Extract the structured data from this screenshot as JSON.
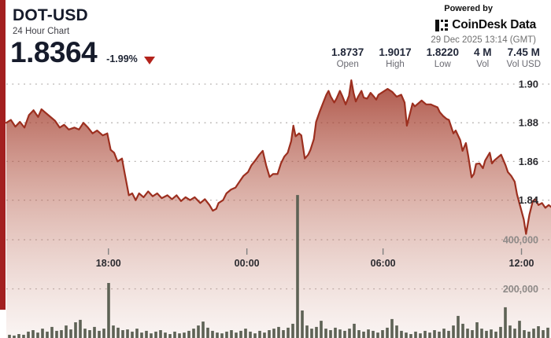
{
  "header": {
    "symbol": "DOT-USD",
    "subtitle": "24 Hour Chart",
    "price": "1.8364",
    "change": "-1.99%",
    "change_direction": "down",
    "accent_color": "#a32020"
  },
  "attribution": {
    "powered_by": "Powered by",
    "brand": "CoinDesk Data",
    "timestamp": "29 Dec 2025 13:14 (GMT)"
  },
  "stats": [
    {
      "value": "1.8737",
      "label": "Open"
    },
    {
      "value": "1.9017",
      "label": "High"
    },
    {
      "value": "1.8220",
      "label": "Low"
    },
    {
      "value": "4 M",
      "label": "Vol"
    },
    {
      "value": "7.45 M",
      "label": "Vol USD"
    }
  ],
  "chart_data": {
    "type": "area",
    "title": "DOT-USD 24 hour price with volume bars",
    "x_axis": {
      "unit": "time (GMT)",
      "span_hours": 24,
      "ticks": [
        "18:00",
        "00:00",
        "06:00",
        "12:00"
      ],
      "tick_hours": [
        4.5,
        10.6,
        16.6,
        22.7
      ],
      "grid": false
    },
    "price_axis": {
      "side": "right",
      "ticks": [
        1.9,
        1.88,
        1.86,
        1.84
      ],
      "tick_labels": [
        "1.90",
        "1.88",
        "1.86",
        "1.84"
      ],
      "range": [
        1.818,
        1.908
      ],
      "grid": "dotted"
    },
    "volume_axis": {
      "side": "right",
      "ticks": [
        400000,
        200000
      ],
      "tick_labels": [
        "400,000",
        "200,000"
      ],
      "range": [
        0,
        640000
      ],
      "grid": "dotted"
    },
    "price_series": {
      "name": "DOT-USD price",
      "points_format": "[hours_since_chart_start, price_usd]",
      "points": [
        [
          0.0,
          1.88
        ],
        [
          0.2,
          1.8815
        ],
        [
          0.4,
          1.878
        ],
        [
          0.6,
          1.8805
        ],
        [
          0.8,
          1.8775
        ],
        [
          1.0,
          1.884
        ],
        [
          1.2,
          1.8865
        ],
        [
          1.4,
          1.883
        ],
        [
          1.55,
          1.887
        ],
        [
          1.7,
          1.8855
        ],
        [
          1.9,
          1.8835
        ],
        [
          2.15,
          1.881
        ],
        [
          2.35,
          1.8775
        ],
        [
          2.55,
          1.879
        ],
        [
          2.75,
          1.8765
        ],
        [
          3.0,
          1.8775
        ],
        [
          3.2,
          1.8765
        ],
        [
          3.4,
          1.88
        ],
        [
          3.6,
          1.8775
        ],
        [
          3.8,
          1.8745
        ],
        [
          4.0,
          1.876
        ],
        [
          4.25,
          1.8735
        ],
        [
          4.45,
          1.8745
        ],
        [
          4.6,
          1.866
        ],
        [
          4.75,
          1.8645
        ],
        [
          4.9,
          1.86
        ],
        [
          5.1,
          1.8615
        ],
        [
          5.2,
          1.855
        ],
        [
          5.4,
          1.8425
        ],
        [
          5.55,
          1.8435
        ],
        [
          5.7,
          1.84
        ],
        [
          5.85,
          1.8435
        ],
        [
          6.05,
          1.8415
        ],
        [
          6.25,
          1.8445
        ],
        [
          6.45,
          1.842
        ],
        [
          6.65,
          1.8435
        ],
        [
          6.85,
          1.841
        ],
        [
          7.1,
          1.8425
        ],
        [
          7.3,
          1.8405
        ],
        [
          7.5,
          1.8425
        ],
        [
          7.7,
          1.8395
        ],
        [
          7.9,
          1.8415
        ],
        [
          8.1,
          1.84
        ],
        [
          8.3,
          1.8415
        ],
        [
          8.55,
          1.8385
        ],
        [
          8.75,
          1.8405
        ],
        [
          8.95,
          1.8375
        ],
        [
          9.1,
          1.8345
        ],
        [
          9.25,
          1.8355
        ],
        [
          9.35,
          1.8385
        ],
        [
          9.55,
          1.84
        ],
        [
          9.7,
          1.8435
        ],
        [
          9.9,
          1.8455
        ],
        [
          10.1,
          1.8465
        ],
        [
          10.3,
          1.85
        ],
        [
          10.45,
          1.8525
        ],
        [
          10.65,
          1.8545
        ],
        [
          10.8,
          1.858
        ],
        [
          11.0,
          1.861
        ],
        [
          11.15,
          1.8635
        ],
        [
          11.3,
          1.8655
        ],
        [
          11.45,
          1.858
        ],
        [
          11.6,
          1.852
        ],
        [
          11.75,
          1.8535
        ],
        [
          11.95,
          1.8535
        ],
        [
          12.1,
          1.859
        ],
        [
          12.25,
          1.8625
        ],
        [
          12.4,
          1.8645
        ],
        [
          12.55,
          1.8705
        ],
        [
          12.65,
          1.8785
        ],
        [
          12.75,
          1.873
        ],
        [
          12.9,
          1.8745
        ],
        [
          13.0,
          1.8735
        ],
        [
          13.15,
          1.8615
        ],
        [
          13.3,
          1.8635
        ],
        [
          13.4,
          1.866
        ],
        [
          13.55,
          1.8715
        ],
        [
          13.65,
          1.8805
        ],
        [
          13.8,
          1.8855
        ],
        [
          13.95,
          1.89
        ],
        [
          14.1,
          1.8945
        ],
        [
          14.2,
          1.8965
        ],
        [
          14.3,
          1.8935
        ],
        [
          14.45,
          1.8905
        ],
        [
          14.55,
          1.8925
        ],
        [
          14.7,
          1.8965
        ],
        [
          14.8,
          1.894
        ],
        [
          14.95,
          1.8895
        ],
        [
          15.1,
          1.894
        ],
        [
          15.2,
          1.902
        ],
        [
          15.3,
          1.8955
        ],
        [
          15.4,
          1.891
        ],
        [
          15.5,
          1.8935
        ],
        [
          15.65,
          1.8965
        ],
        [
          15.75,
          1.893
        ],
        [
          15.9,
          1.8925
        ],
        [
          16.05,
          1.8955
        ],
        [
          16.2,
          1.8935
        ],
        [
          16.3,
          1.892
        ],
        [
          16.4,
          1.8945
        ],
        [
          16.6,
          1.896
        ],
        [
          16.8,
          1.8975
        ],
        [
          17.0,
          1.896
        ],
        [
          17.2,
          1.8935
        ],
        [
          17.4,
          1.8945
        ],
        [
          17.55,
          1.8905
        ],
        [
          17.65,
          1.8785
        ],
        [
          17.9,
          1.89
        ],
        [
          18.0,
          1.8885
        ],
        [
          18.3,
          1.8915
        ],
        [
          18.5,
          1.8895
        ],
        [
          18.7,
          1.8895
        ],
        [
          18.8,
          1.889
        ],
        [
          19.0,
          1.888
        ],
        [
          19.1,
          1.8855
        ],
        [
          19.25,
          1.8835
        ],
        [
          19.4,
          1.882
        ],
        [
          19.5,
          1.8815
        ],
        [
          19.7,
          1.8745
        ],
        [
          19.8,
          1.876
        ],
        [
          20.0,
          1.871
        ],
        [
          20.1,
          1.8655
        ],
        [
          20.25,
          1.8695
        ],
        [
          20.35,
          1.863
        ],
        [
          20.5,
          1.8518
        ],
        [
          20.6,
          1.8535
        ],
        [
          20.7,
          1.8587
        ],
        [
          20.85,
          1.859
        ],
        [
          21.0,
          1.8565
        ],
        [
          21.1,
          1.8605
        ],
        [
          21.3,
          1.8645
        ],
        [
          21.4,
          1.859
        ],
        [
          21.5,
          1.8605
        ],
        [
          21.7,
          1.8625
        ],
        [
          21.8,
          1.8635
        ],
        [
          22.0,
          1.858
        ],
        [
          22.1,
          1.8545
        ],
        [
          22.25,
          1.8525
        ],
        [
          22.4,
          1.8495
        ],
        [
          22.5,
          1.843
        ],
        [
          22.65,
          1.8365
        ],
        [
          22.8,
          1.83
        ],
        [
          22.9,
          1.8225
        ],
        [
          23.05,
          1.8325
        ],
        [
          23.2,
          1.8395
        ],
        [
          23.3,
          1.8405
        ],
        [
          23.45,
          1.8375
        ],
        [
          23.6,
          1.8385
        ],
        [
          23.75,
          1.836
        ],
        [
          23.9,
          1.8375
        ],
        [
          24.0,
          1.8365
        ]
      ]
    },
    "volume_series": {
      "name": "Volume",
      "unit": "thousands",
      "values": [
        13,
        10,
        16,
        13,
        26,
        32,
        22,
        38,
        26,
        45,
        29,
        32,
        51,
        35,
        64,
        74,
        38,
        32,
        45,
        29,
        38,
        224,
        51,
        42,
        32,
        35,
        26,
        38,
        22,
        29,
        19,
        26,
        32,
        22,
        16,
        26,
        19,
        22,
        29,
        38,
        51,
        67,
        42,
        29,
        22,
        19,
        26,
        32,
        22,
        29,
        38,
        26,
        19,
        29,
        22,
        32,
        38,
        45,
        32,
        42,
        58,
        582,
        112,
        51,
        38,
        45,
        70,
        38,
        32,
        42,
        35,
        29,
        38,
        58,
        32,
        26,
        35,
        29,
        22,
        32,
        42,
        77,
        51,
        29,
        22,
        16,
        26,
        19,
        29,
        22,
        32,
        26,
        38,
        29,
        51,
        90,
        58,
        38,
        32,
        64,
        38,
        29,
        35,
        26,
        45,
        125,
        51,
        38,
        70,
        32,
        26,
        38,
        48,
        32,
        42
      ]
    },
    "colors": {
      "line": "#9c2f1f",
      "area_top": "rgba(155,45,30,0.82)",
      "area_mid": "rgba(180,90,72,0.50)",
      "area_bottom": "rgba(205,150,135,0.10)",
      "volume_bar": "#5e6255",
      "grid_dot": "#b5b0ae",
      "price_tick_text": "#2b2b30",
      "volume_tick_text": "#8e8a88",
      "time_tick_text": "#2b2b30"
    },
    "legend": null,
    "grid_style": "dotted horizontal only"
  }
}
